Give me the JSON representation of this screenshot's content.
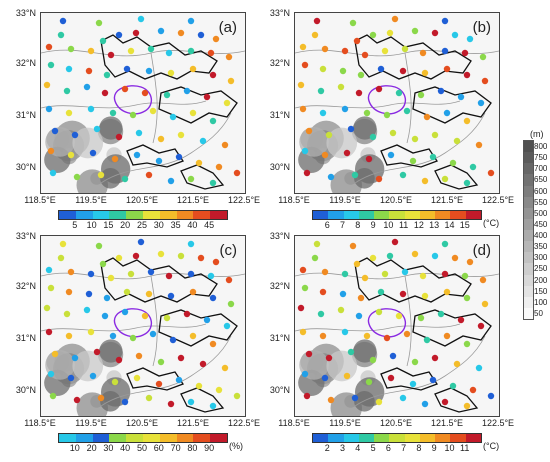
{
  "lat_labels": [
    "33°N",
    "32°N",
    "31°N",
    "30°N"
  ],
  "lon_labels": [
    "118.5°E",
    "119.5°E",
    "120.5°E",
    "121.5°E",
    "122.5°E"
  ],
  "panels": [
    {
      "label": "(a)",
      "scale": "a"
    },
    {
      "label": "(b)",
      "scale": "b"
    },
    {
      "label": "(c)",
      "scale": "c"
    },
    {
      "label": "(d)",
      "scale": "d"
    }
  ],
  "scales": {
    "a": {
      "ticks": [
        "5",
        "10",
        "15",
        "20",
        "25",
        "30",
        "35",
        "40",
        "45"
      ],
      "unit": "",
      "colors": [
        "#1f5fd6",
        "#21a0e8",
        "#27c8e8",
        "#2fc9a4",
        "#8bd84a",
        "#e8e23a",
        "#f4bd2a",
        "#f08a22",
        "#e44d1f",
        "#c21a2a"
      ]
    },
    "b": {
      "ticks": [
        "6",
        "7",
        "8",
        "9",
        "10",
        "11",
        "12",
        "13",
        "14",
        "15"
      ],
      "unit": "(°C)",
      "colors": [
        "#1f5fd6",
        "#21a0e8",
        "#27c8e8",
        "#2fc9a4",
        "#8bd84a",
        "#c9e03a",
        "#e8e23a",
        "#f4bd2a",
        "#f08a22",
        "#e44d1f",
        "#c21a2a"
      ]
    },
    "c": {
      "ticks": [
        "10",
        "20",
        "30",
        "40",
        "50",
        "60",
        "70",
        "80",
        "90"
      ],
      "unit": "(%)",
      "colors": [
        "#27c8e8",
        "#21a0e8",
        "#1f5fd6",
        "#8bd84a",
        "#c9e03a",
        "#e8e23a",
        "#f4bd2a",
        "#f08a22",
        "#e44d1f",
        "#c21a2a"
      ]
    },
    "d": {
      "ticks": [
        "2",
        "3",
        "4",
        "5",
        "6",
        "7",
        "8",
        "9",
        "10",
        "11"
      ],
      "unit": "(°C)",
      "colors": [
        "#1f5fd6",
        "#21a0e8",
        "#27c8e8",
        "#2fc9a4",
        "#8bd84a",
        "#c9e03a",
        "#e8e23a",
        "#f4bd2a",
        "#f08a22",
        "#e44d1f",
        "#c21a2a"
      ]
    }
  },
  "elevation": {
    "unit": "(m)",
    "ticks": [
      "800",
      "750",
      "700",
      "650",
      "600",
      "550",
      "500",
      "450",
      "400",
      "350",
      "300",
      "250",
      "200",
      "150",
      "100",
      "50"
    ]
  }
}
